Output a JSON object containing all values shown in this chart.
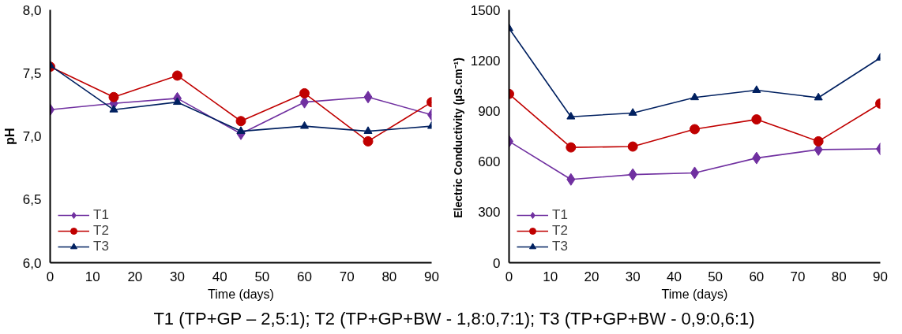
{
  "chart_data": [
    {
      "type": "line",
      "xlabel": "Time (days)",
      "ylabel": "pH",
      "x": [
        0,
        15,
        30,
        45,
        60,
        75,
        90
      ],
      "xlim": [
        0,
        90
      ],
      "xticks": [
        0,
        10,
        20,
        30,
        40,
        50,
        60,
        70,
        80,
        90
      ],
      "ylim": [
        6,
        8
      ],
      "yticks": [
        {
          "value": 6,
          "label": "6,0"
        },
        {
          "value": 6.5,
          "label": "6,5"
        },
        {
          "value": 7,
          "label": "7,0"
        },
        {
          "value": 7.5,
          "label": "7,5"
        },
        {
          "value": 8,
          "label": "8,0"
        }
      ],
      "grid": false,
      "legend": "bottom left",
      "series": [
        {
          "name": "T1",
          "color": "#7030a0",
          "marker": "diamond",
          "values": [
            7.21,
            7.26,
            7.3,
            7.02,
            7.27,
            7.31,
            7.17
          ]
        },
        {
          "name": "T2",
          "color": "#c00000",
          "marker": "circle",
          "values": [
            7.55,
            7.31,
            7.48,
            7.12,
            7.34,
            6.96,
            7.27
          ]
        },
        {
          "name": "T3",
          "color": "#002060",
          "marker": "triangle",
          "values": [
            7.56,
            7.21,
            7.27,
            7.04,
            7.08,
            7.04,
            7.08
          ]
        }
      ]
    },
    {
      "type": "line",
      "xlabel": "Time (days)",
      "ylabel": "Electric Conductivity  (µS.cm⁻¹)",
      "x": [
        0,
        15,
        30,
        45,
        60,
        75,
        90
      ],
      "xlim": [
        0,
        90
      ],
      "xticks": [
        0,
        10,
        20,
        30,
        40,
        50,
        60,
        70,
        80,
        90
      ],
      "ylim": [
        0,
        1500
      ],
      "yticks": [
        0,
        300,
        600,
        900,
        1200,
        1500
      ],
      "grid": false,
      "legend": "bottom left",
      "series": [
        {
          "name": "T1",
          "color": "#7030a0",
          "marker": "diamond",
          "values": [
            720,
            494,
            523,
            533,
            621,
            671,
            675
          ]
        },
        {
          "name": "T2",
          "color": "#c00000",
          "marker": "circle",
          "values": [
            1001,
            684,
            689,
            792,
            850,
            720,
            944
          ]
        },
        {
          "name": "T3",
          "color": "#002060",
          "marker": "triangle",
          "values": [
            1390,
            866,
            888,
            980,
            1023,
            979,
            1215
          ]
        }
      ]
    },
    {
      "type": "other",
      "annotations": [
        "T1 (TP+GP – 2,5:1); T2 (TP+GP+BW - 1,8:0,7:1); T3 (TP+GP+BW - 0,9:0,6:1)"
      ]
    }
  ]
}
